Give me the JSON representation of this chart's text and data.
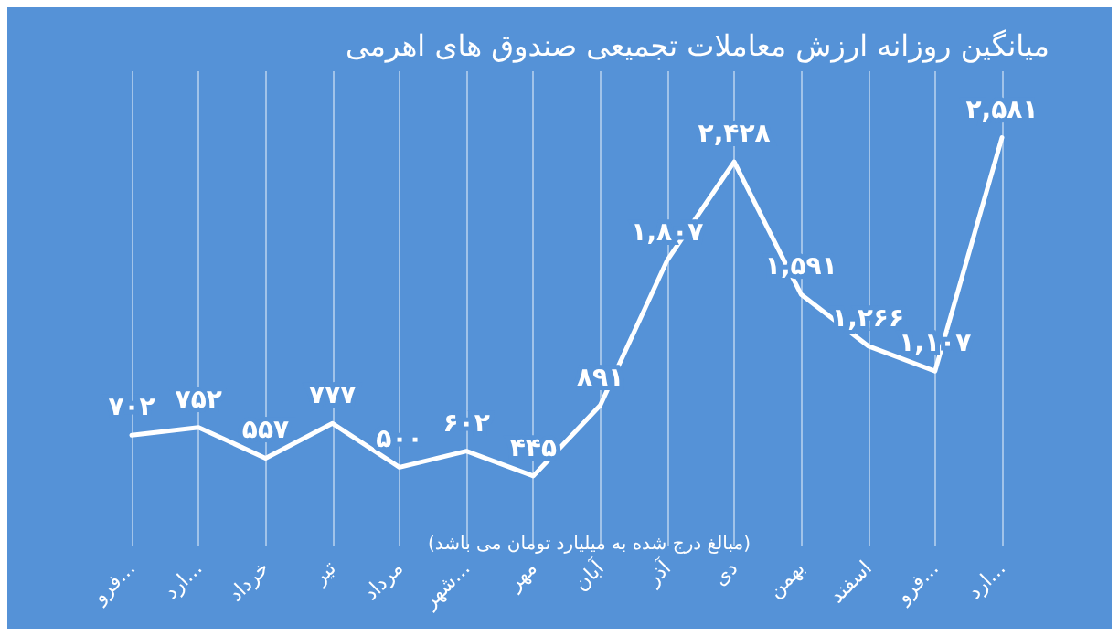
{
  "chart_data": {
    "type": "line",
    "title": "میانگین روزانه ارزش معاملات تجمیعی صندوق های اهرمی",
    "categories": [
      "فرو...",
      "ارد...",
      "خرداد",
      "تیر",
      "مرداد",
      "شهر...",
      "مهر",
      "آبان",
      "آذر",
      "دی",
      "بهمن",
      "اسفند",
      "فرو...",
      "ارد..."
    ],
    "series": [
      {
        "color": "#ffffff",
        "values": [
          702,
          752,
          557,
          777,
          500,
          602,
          445,
          891,
          1807,
          2428,
          1591,
          1266,
          1107,
          2581
        ],
        "value_labels": [
          "۷۰۲",
          "۷۵۲",
          "۵۵۷",
          "۷۷۷",
          "۵۰۰",
          "۶۰۲",
          "۴۴۵",
          "۸۹۱",
          "۱,۸۰۷",
          "۲,۴۲۸",
          "۱,۵۹۱",
          "۱,۲۶۶",
          "۱,۱۰۷",
          "۲,۵۸۱"
        ]
      }
    ],
    "annotations": [
      "(مبالغ درج شده به میلیارد تومان می باشد)"
    ],
    "marker": "none",
    "line_style": "solid",
    "grid": "x",
    "tick_labels": "x"
  }
}
